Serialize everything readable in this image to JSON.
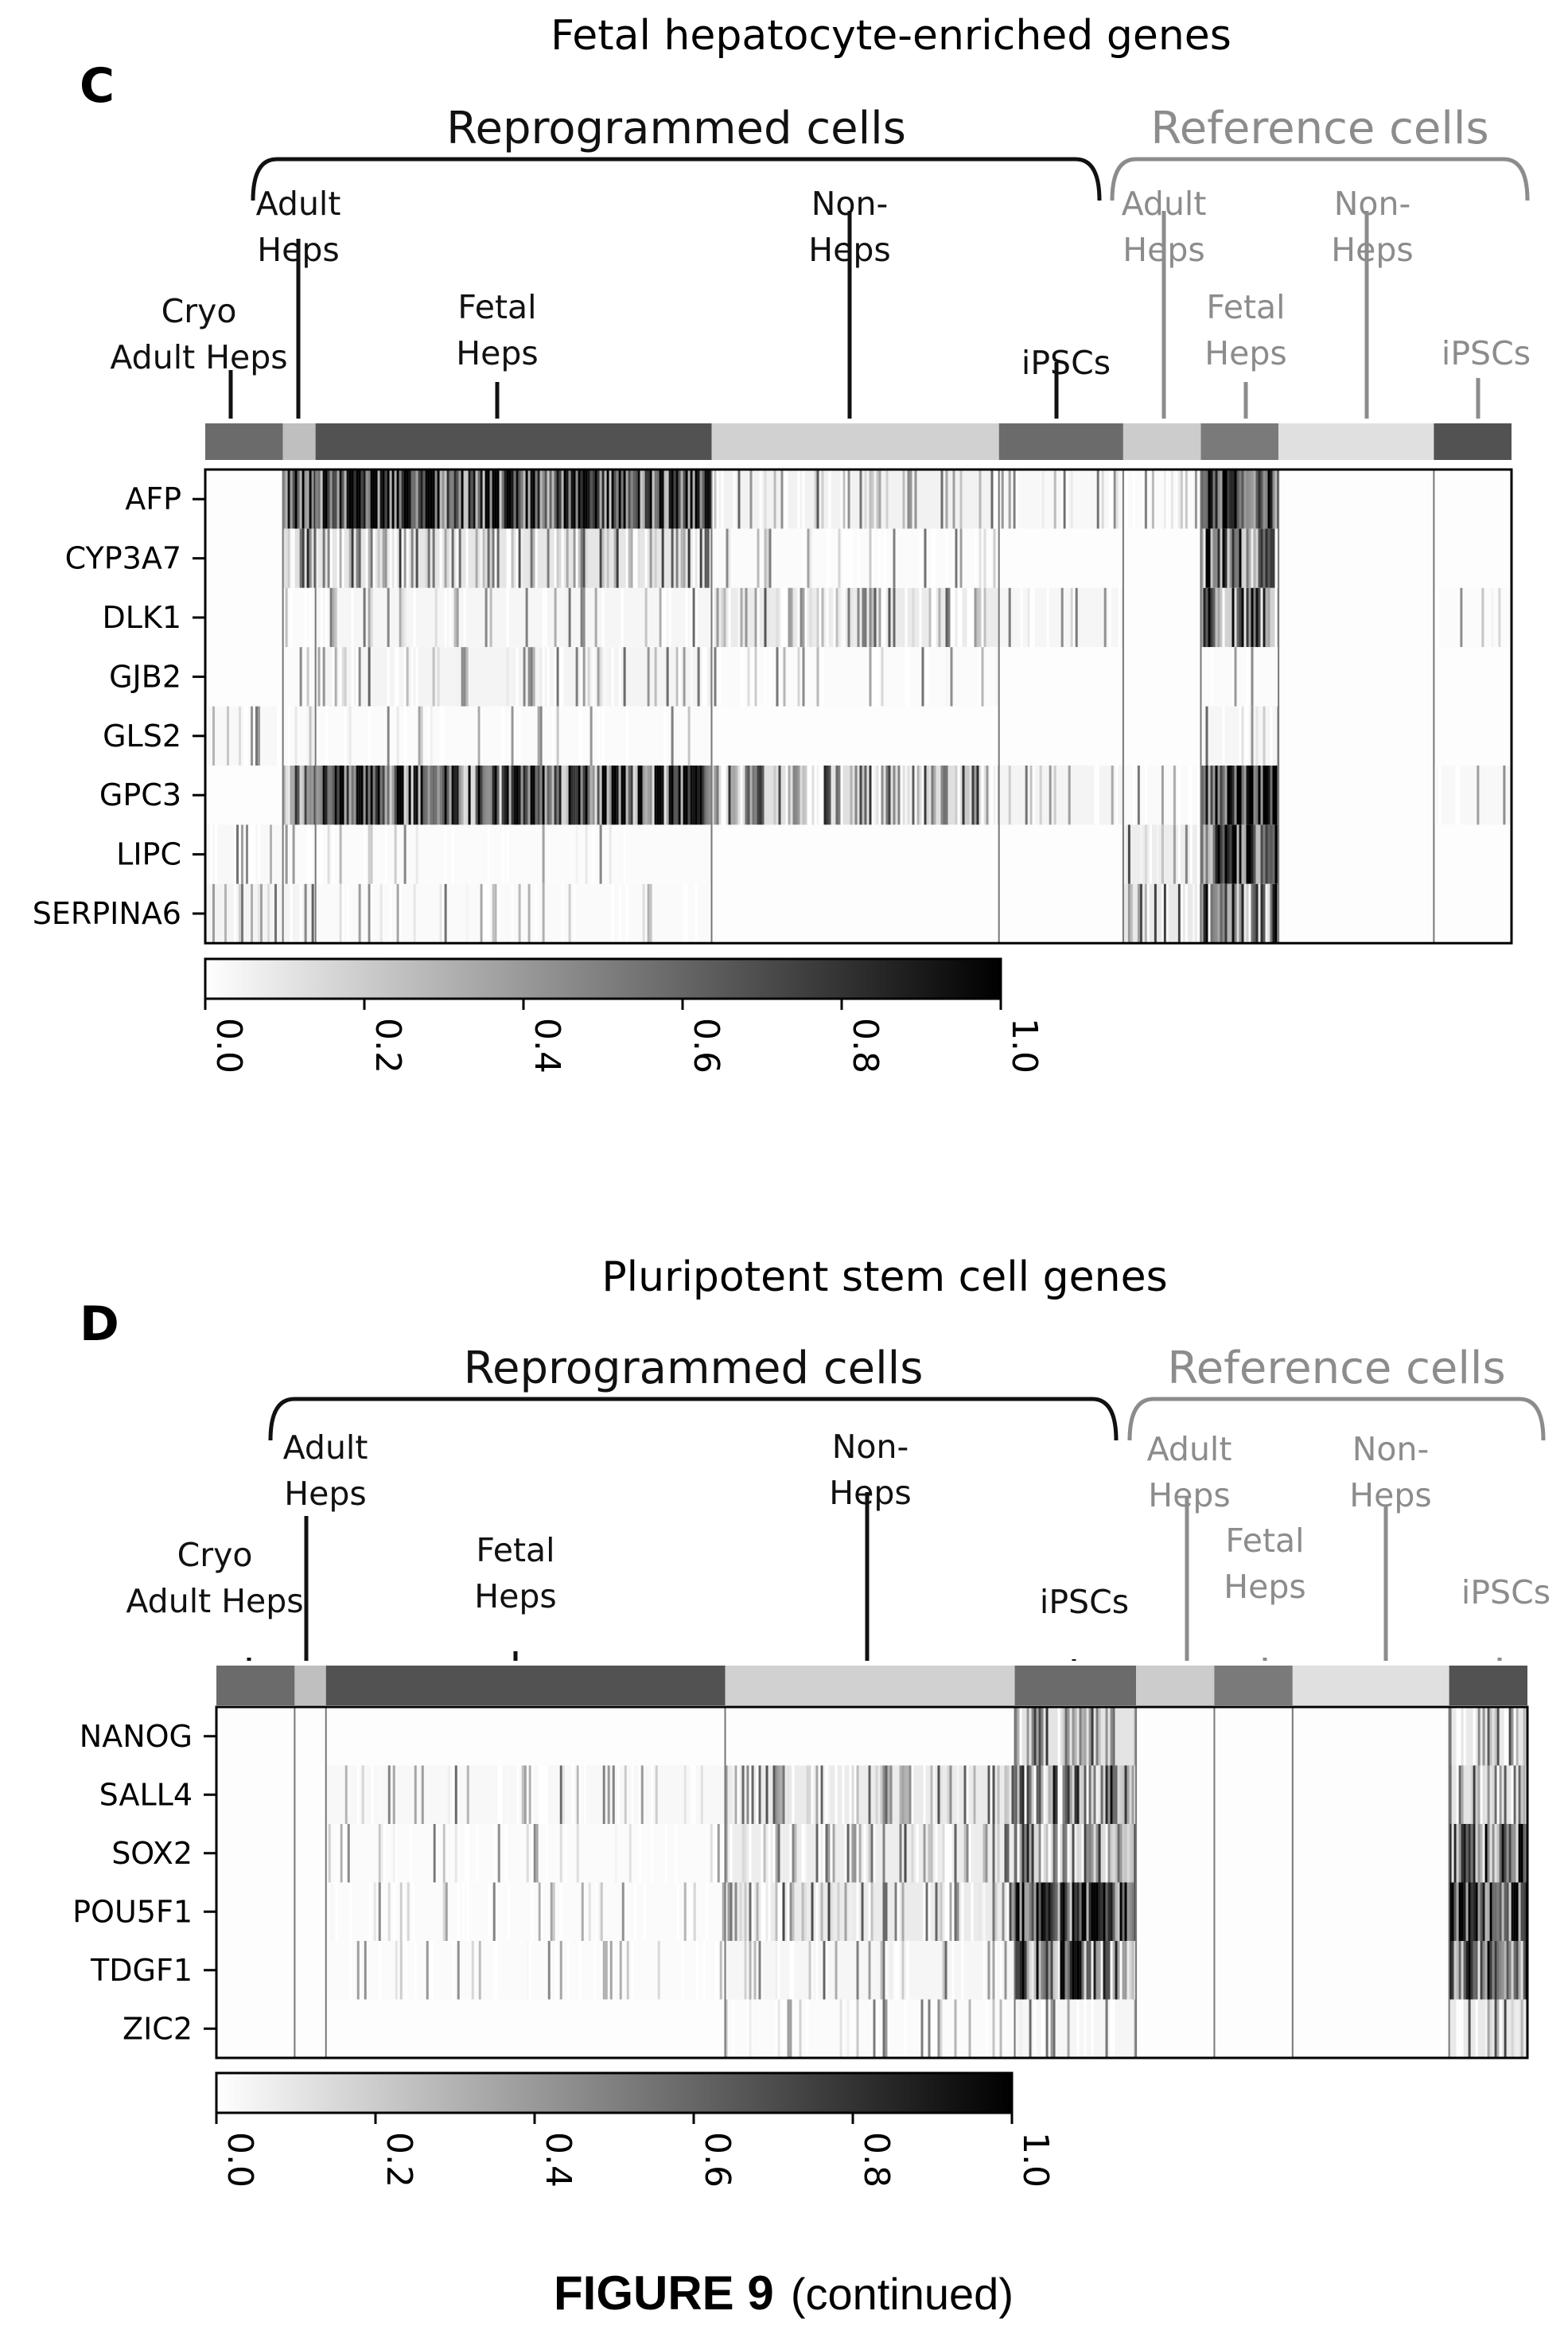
{
  "caption": {
    "figure": "FIGURE 9",
    "suffix": "(continued)"
  },
  "colors": {
    "reprogrammed": "#111111",
    "reference": "#8c8c8c",
    "cmap_low": "#ffffff",
    "cmap_high": "#000000"
  },
  "chart_data": [
    {
      "type": "heatmap",
      "panel": "C",
      "title": "Fetal hepatocyte-enriched genes",
      "brackets": [
        {
          "label": "Reprogrammed  cells",
          "tone": "reprogrammed"
        },
        {
          "label": "Reference cells",
          "tone": "reference"
        }
      ],
      "groups": [
        {
          "label": [
            "Cryo",
            "Adult Heps"
          ],
          "tone": "reprogrammed",
          "shade": 0.58,
          "cells": 1,
          "values": [
            0.02,
            0.02,
            0.02,
            0.02,
            0.08,
            0.02,
            0.08,
            0.12
          ]
        },
        {
          "label": [
            "Adult",
            "Heps"
          ],
          "tone": "reprogrammed",
          "shade": 0.25,
          "cells": 0.42,
          "values": [
            0.75,
            0.35,
            0.04,
            0.04,
            0.04,
            0.6,
            0.04,
            0.12
          ]
        },
        {
          "label": [
            "Fetal",
            "Heps"
          ],
          "tone": "reprogrammed",
          "shade": 0.68,
          "cells": 5.1,
          "values": [
            0.75,
            0.28,
            0.1,
            0.12,
            0.04,
            0.65,
            0.04,
            0.06
          ]
        },
        {
          "label": [
            "Non-",
            "Heps"
          ],
          "tone": "reprogrammed",
          "shade": 0.18,
          "cells": 3.7,
          "values": [
            0.15,
            0.04,
            0.22,
            0.04,
            0.02,
            0.35,
            0.02,
            0.02
          ]
        },
        {
          "label": [
            "iPSCs"
          ],
          "tone": "reprogrammed",
          "shade": 0.58,
          "cells": 1.6,
          "values": [
            0.08,
            0.02,
            0.1,
            0.02,
            0.02,
            0.12,
            0.02,
            0.02
          ]
        },
        {
          "label": [
            "Adult",
            "Heps"
          ],
          "tone": "reference",
          "shade": 0.2,
          "cells": 1,
          "values": [
            0.05,
            0.02,
            0.02,
            0.02,
            0.02,
            0.06,
            0.2,
            0.25
          ]
        },
        {
          "label": [
            "Fetal",
            "Heps"
          ],
          "tone": "reference",
          "shade": 0.52,
          "cells": 1,
          "values": [
            0.8,
            0.55,
            0.5,
            0.04,
            0.1,
            0.8,
            0.75,
            0.5
          ]
        },
        {
          "label": [
            "Non-",
            "Heps"
          ],
          "tone": "reference",
          "shade": 0.12,
          "cells": 2,
          "values": [
            0.02,
            0.02,
            0.02,
            0.02,
            0.02,
            0.02,
            0.02,
            0.02
          ]
        },
        {
          "label": [
            "iPSCs"
          ],
          "tone": "reference",
          "shade": 0.68,
          "cells": 1,
          "values": [
            0.02,
            0.02,
            0.04,
            0.02,
            0.02,
            0.08,
            0.02,
            0.02
          ]
        }
      ],
      "genes": [
        "AFP",
        "CYP3A7",
        "DLK1",
        "GJB2",
        "GLS2",
        "GPC3",
        "LIPC",
        "SERPINA6"
      ],
      "colorbar": {
        "min": 0.0,
        "max": 1.0,
        "ticks": [
          "0.0",
          "0.2",
          "0.4",
          "0.6",
          "0.8",
          "1.0"
        ]
      }
    },
    {
      "type": "heatmap",
      "panel": "D",
      "title": "Pluripotent stem cell genes",
      "brackets": [
        {
          "label": "Reprogrammed  cells",
          "tone": "reprogrammed"
        },
        {
          "label": "Reference cells",
          "tone": "reference"
        }
      ],
      "groups": [
        {
          "label": [
            "Cryo",
            "Adult Heps"
          ],
          "tone": "reprogrammed",
          "shade": 0.58,
          "cells": 1,
          "values": [
            0.02,
            0.02,
            0.02,
            0.02,
            0.02,
            0.02
          ]
        },
        {
          "label": [
            "Adult",
            "Heps"
          ],
          "tone": "reprogrammed",
          "shade": 0.25,
          "cells": 0.4,
          "values": [
            0.02,
            0.02,
            0.02,
            0.02,
            0.02,
            0.02
          ]
        },
        {
          "label": [
            "Fetal",
            "Heps"
          ],
          "tone": "reprogrammed",
          "shade": 0.68,
          "cells": 5.1,
          "values": [
            0.02,
            0.08,
            0.04,
            0.04,
            0.04,
            0.02
          ]
        },
        {
          "label": [
            "Non-",
            "Heps"
          ],
          "tone": "reprogrammed",
          "shade": 0.18,
          "cells": 3.7,
          "values": [
            0.02,
            0.22,
            0.2,
            0.22,
            0.1,
            0.04
          ]
        },
        {
          "label": [
            "iPSCs"
          ],
          "tone": "reprogrammed",
          "shade": 0.58,
          "cells": 1.55,
          "values": [
            0.3,
            0.45,
            0.4,
            0.75,
            0.55,
            0.1
          ]
        },
        {
          "label": [
            "Adult",
            "Heps"
          ],
          "tone": "reference",
          "shade": 0.2,
          "cells": 1,
          "values": [
            0.02,
            0.02,
            0.02,
            0.02,
            0.02,
            0.02
          ]
        },
        {
          "label": [
            "Fetal",
            "Heps"
          ],
          "tone": "reference",
          "shade": 0.52,
          "cells": 1,
          "values": [
            0.02,
            0.02,
            0.02,
            0.02,
            0.02,
            0.02
          ]
        },
        {
          "label": [
            "Non-",
            "Heps"
          ],
          "tone": "reference",
          "shade": 0.12,
          "cells": 2,
          "values": [
            0.02,
            0.02,
            0.02,
            0.02,
            0.02,
            0.02
          ]
        },
        {
          "label": [
            "iPSCs"
          ],
          "tone": "reference",
          "shade": 0.68,
          "cells": 1,
          "values": [
            0.25,
            0.3,
            0.6,
            0.75,
            0.65,
            0.25
          ]
        }
      ],
      "genes": [
        "NANOG",
        "SALL4",
        "SOX2",
        "POU5F1",
        "TDGF1",
        "ZIC2"
      ],
      "colorbar": {
        "min": 0.0,
        "max": 1.0,
        "ticks": [
          "0.0",
          "0.2",
          "0.4",
          "0.6",
          "0.8",
          "1.0"
        ]
      }
    }
  ]
}
